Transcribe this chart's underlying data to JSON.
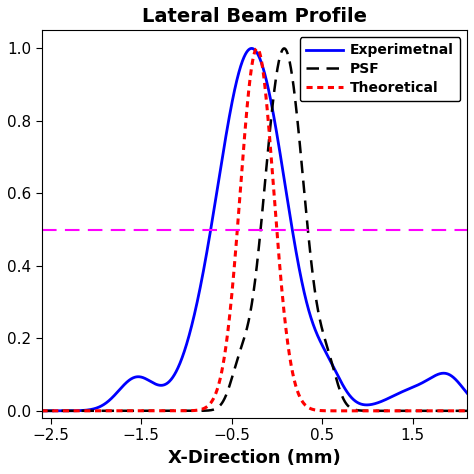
{
  "title": "Lateral Beam Profile",
  "xlabel": "X-Direction (mm)",
  "ylabel": "",
  "xlim": [
    -2.6,
    2.1
  ],
  "ylim": [
    -0.02,
    1.05
  ],
  "xticks": [
    -2.5,
    -1.5,
    -0.5,
    0.5,
    1.5
  ],
  "yticks": [
    0,
    0.2,
    0.4,
    0.6,
    0.8,
    1.0
  ],
  "half_line_y": 0.5,
  "legend_labels": [
    "Experimetnal",
    "PSF",
    "Theoretical"
  ],
  "background_color": "#ffffff",
  "title_fontsize": 14,
  "label_fontsize": 13,
  "tick_fontsize": 11
}
